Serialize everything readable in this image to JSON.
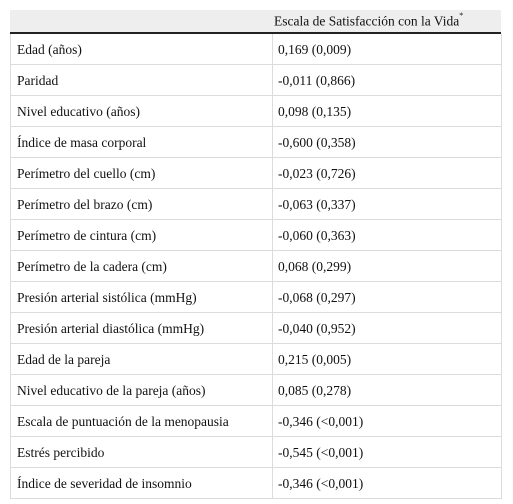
{
  "table": {
    "header": {
      "label": "Escala de Satisfacción con la Vida",
      "mark": "*"
    },
    "rows": [
      [
        "Edad (años)",
        "0,169 (0,009)"
      ],
      [
        "Paridad",
        "-0,011 (0,866)"
      ],
      [
        "Nivel educativo (años)",
        "0,098 (0,135)"
      ],
      [
        "Índice de masa corporal",
        "-0,600 (0,358)"
      ],
      [
        "Perímetro del cuello (cm)",
        "-0,023 (0,726)"
      ],
      [
        "Perímetro del brazo (cm)",
        "-0,063 (0,337)"
      ],
      [
        "Perímetro de cintura (cm)",
        "-0,060 (0,363)"
      ],
      [
        "Perímetro de la cadera (cm)",
        "0,068 (0,299)"
      ],
      [
        "Presión arterial sistólica (mmHg)",
        "-0,068 (0,297)"
      ],
      [
        "Presión arterial diastólica (mmHg)",
        "-0,040 (0,952)"
      ],
      [
        "Edad de la pareja",
        "0,215 (0,005)"
      ],
      [
        "Nivel educativo de la pareja (años)",
        "0,085 (0,278)"
      ],
      [
        "Escala de puntuación de la menopausia",
        "-0,346 (<0,001)"
      ],
      [
        "Estrés percibido",
        "-0,545 (<0,001)"
      ],
      [
        "Índice de severidad de insomnio",
        "-0,346 (<0,001)"
      ]
    ]
  }
}
